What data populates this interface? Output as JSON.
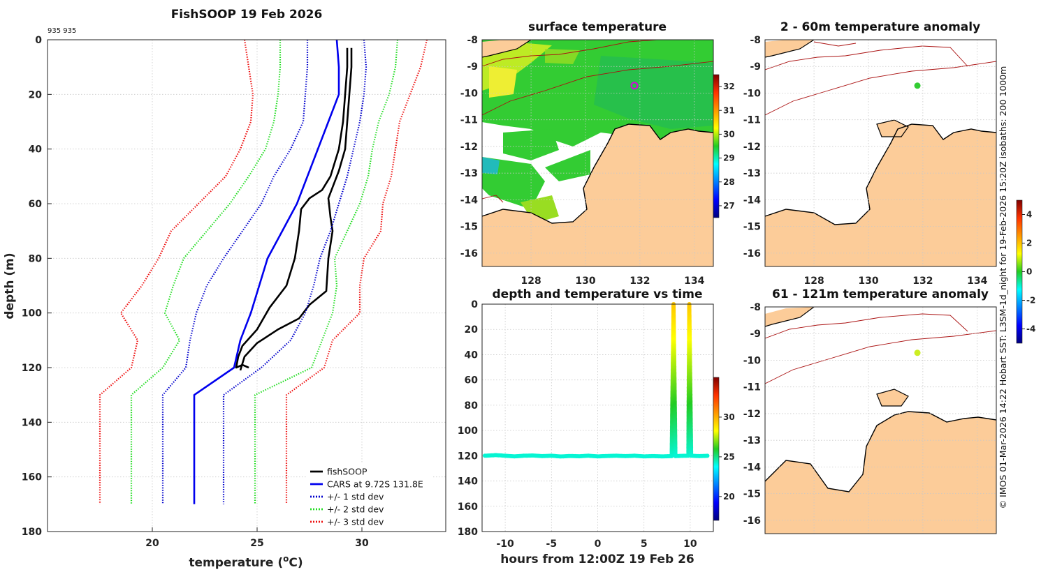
{
  "chart_data": [
    {
      "type": "line",
      "title": "FishSOOP 19 Feb 2026",
      "annotation": "935 935",
      "xlabel_main": "temperature (",
      "xlabel_sup": "o",
      "xlabel_tail": "C)",
      "ylabel": "depth (m)",
      "xlim": [
        15,
        34
      ],
      "ylim": [
        180,
        0
      ],
      "xticks": [
        20,
        25,
        30
      ],
      "yticks": [
        0,
        20,
        40,
        60,
        80,
        100,
        120,
        140,
        160,
        180
      ],
      "legend_position": "bottom-right",
      "series": [
        {
          "name": "fishSOOP",
          "color": "#000000",
          "style": "solid",
          "points": [
            [
              29.3,
              3
            ],
            [
              29.3,
              10
            ],
            [
              29.2,
              20
            ],
            [
              29.1,
              30
            ],
            [
              28.9,
              40
            ],
            [
              28.5,
              50
            ],
            [
              28.1,
              55
            ],
            [
              27.5,
              58
            ],
            [
              27.1,
              62
            ],
            [
              27.0,
              70
            ],
            [
              26.8,
              80
            ],
            [
              26.4,
              90
            ],
            [
              25.6,
              98
            ],
            [
              25.0,
              106
            ],
            [
              24.3,
              112
            ],
            [
              24.1,
              116
            ],
            [
              24.0,
              120
            ],
            [
              24.3,
              119
            ],
            [
              24.6,
              120
            ]
          ]
        },
        {
          "name": "",
          "color": "#000000",
          "style": "solid",
          "points": [
            [
              29.5,
              3
            ],
            [
              29.5,
              10
            ],
            [
              29.4,
              20
            ],
            [
              29.3,
              30
            ],
            [
              29.2,
              40
            ],
            [
              28.9,
              48
            ],
            [
              28.7,
              52
            ],
            [
              28.4,
              58
            ],
            [
              28.5,
              65
            ],
            [
              28.6,
              70
            ],
            [
              28.4,
              80
            ],
            [
              28.3,
              92
            ],
            [
              27.5,
              97
            ],
            [
              27.0,
              102
            ],
            [
              26.0,
              106
            ],
            [
              25.0,
              111
            ],
            [
              24.4,
              116
            ],
            [
              24.2,
              121
            ]
          ]
        },
        {
          "name": "CARS at 9.72S 131.8E",
          "color": "#0000ee",
          "style": "solid",
          "points": [
            [
              28.8,
              0
            ],
            [
              28.9,
              10
            ],
            [
              28.9,
              20
            ],
            [
              28.4,
              30
            ],
            [
              27.9,
              40
            ],
            [
              27.4,
              50
            ],
            [
              26.9,
              60
            ],
            [
              26.2,
              70
            ],
            [
              25.5,
              80
            ],
            [
              25.1,
              90
            ],
            [
              24.7,
              100
            ],
            [
              24.2,
              110
            ],
            [
              23.9,
              120
            ],
            [
              22.0,
              130
            ],
            [
              22.0,
              170
            ]
          ]
        },
        {
          "name": "+/- 1 std dev",
          "color": "#0000cc",
          "style": "dotted",
          "points": [
            [
              27.4,
              0
            ],
            [
              27.4,
              10
            ],
            [
              27.3,
              20
            ],
            [
              27.2,
              30
            ],
            [
              26.6,
              40
            ],
            [
              25.8,
              50
            ],
            [
              25.2,
              60
            ],
            [
              24.3,
              70
            ],
            [
              23.4,
              80
            ],
            [
              22.6,
              90
            ],
            [
              22.1,
              100
            ],
            [
              21.8,
              110
            ],
            [
              21.6,
              120
            ],
            [
              20.5,
              130
            ],
            [
              20.5,
              170
            ]
          ]
        },
        {
          "name": "",
          "color": "#0000cc",
          "style": "dotted",
          "points": [
            [
              30.1,
              0
            ],
            [
              30.2,
              10
            ],
            [
              30.1,
              20
            ],
            [
              29.9,
              30
            ],
            [
              29.6,
              40
            ],
            [
              29.3,
              50
            ],
            [
              28.9,
              60
            ],
            [
              28.5,
              70
            ],
            [
              28.0,
              80
            ],
            [
              27.7,
              90
            ],
            [
              27.3,
              100
            ],
            [
              26.6,
              110
            ],
            [
              25.2,
              120
            ],
            [
              23.4,
              130
            ],
            [
              23.4,
              170
            ]
          ]
        },
        {
          "name": "+/- 2 std dev",
          "color": "#22dd22",
          "style": "dotted",
          "points": [
            [
              26.1,
              0
            ],
            [
              26.1,
              10
            ],
            [
              26.0,
              20
            ],
            [
              25.8,
              30
            ],
            [
              25.4,
              40
            ],
            [
              24.6,
              50
            ],
            [
              23.7,
              60
            ],
            [
              22.6,
              70
            ],
            [
              21.5,
              80
            ],
            [
              21.0,
              90
            ],
            [
              20.6,
              100
            ],
            [
              21.3,
              110
            ],
            [
              20.5,
              120
            ],
            [
              19.0,
              130
            ],
            [
              19.0,
              170
            ]
          ]
        },
        {
          "name": "",
          "color": "#22dd22",
          "style": "dotted",
          "points": [
            [
              31.7,
              0
            ],
            [
              31.6,
              10
            ],
            [
              31.3,
              20
            ],
            [
              30.8,
              30
            ],
            [
              30.5,
              40
            ],
            [
              30.3,
              50
            ],
            [
              29.9,
              60
            ],
            [
              29.3,
              70
            ],
            [
              28.7,
              80
            ],
            [
              28.8,
              90
            ],
            [
              28.6,
              100
            ],
            [
              28.1,
              110
            ],
            [
              27.6,
              120
            ],
            [
              24.9,
              130
            ],
            [
              24.9,
              170
            ]
          ]
        },
        {
          "name": "+/- 3 std dev",
          "color": "#ee1111",
          "style": "dotted",
          "points": [
            [
              24.4,
              0
            ],
            [
              24.6,
              10
            ],
            [
              24.8,
              20
            ],
            [
              24.7,
              30
            ],
            [
              24.2,
              40
            ],
            [
              23.5,
              50
            ],
            [
              22.2,
              60
            ],
            [
              20.9,
              70
            ],
            [
              20.3,
              80
            ],
            [
              19.5,
              90
            ],
            [
              18.5,
              100
            ],
            [
              19.3,
              110
            ],
            [
              19.0,
              120
            ],
            [
              17.5,
              130
            ],
            [
              17.5,
              170
            ]
          ]
        },
        {
          "name": "",
          "color": "#ee1111",
          "style": "dotted",
          "points": [
            [
              33.1,
              0
            ],
            [
              32.8,
              10
            ],
            [
              32.3,
              20
            ],
            [
              31.8,
              30
            ],
            [
              31.6,
              40
            ],
            [
              31.4,
              50
            ],
            [
              31.0,
              60
            ],
            [
              30.9,
              70
            ],
            [
              30.1,
              80
            ],
            [
              29.9,
              90
            ],
            [
              29.9,
              100
            ],
            [
              28.6,
              110
            ],
            [
              28.2,
              120
            ],
            [
              26.4,
              130
            ],
            [
              26.4,
              170
            ]
          ]
        }
      ]
    },
    {
      "type": "heatmap",
      "title": "surface temperature",
      "xticks": [
        128,
        130,
        132,
        134
      ],
      "yticks": [
        -8,
        -9,
        -10,
        -11,
        -12,
        -13,
        -14,
        -15,
        -16
      ],
      "xlim": [
        126.2,
        134.7
      ],
      "ylim": [
        -16.5,
        -8
      ],
      "colorbar": {
        "ticks": [
          27,
          28,
          29,
          30,
          31,
          32
        ],
        "range": [
          26.5,
          32.5
        ]
      },
      "marker": {
        "lon": 131.8,
        "lat": -9.72,
        "color": "#dd00dd"
      }
    },
    {
      "type": "scatter",
      "title": "depth and temperature vs time",
      "xlabel": "hours from 12:00Z 19 Feb 26",
      "xlim": [
        -12.5,
        12.5
      ],
      "ylim": [
        180,
        0
      ],
      "xticks": [
        -10,
        -5,
        0,
        5,
        10
      ],
      "yticks": [
        0,
        20,
        40,
        60,
        80,
        100,
        120,
        140,
        160,
        180
      ],
      "colorbar": {
        "ticks": [
          20,
          25,
          30
        ],
        "range": [
          17,
          35
        ]
      },
      "points": [
        [
          -12.2,
          120
        ],
        [
          -11,
          119.5
        ],
        [
          -10,
          120
        ],
        [
          -9,
          120.5
        ],
        [
          -8,
          120
        ],
        [
          -7,
          119.8
        ],
        [
          -6,
          120.3
        ],
        [
          -5,
          120
        ],
        [
          -4,
          120.6
        ],
        [
          -3,
          120.2
        ],
        [
          -2,
          120.4
        ],
        [
          -1,
          120
        ],
        [
          0,
          120.5
        ],
        [
          1,
          120.2
        ],
        [
          2,
          120
        ],
        [
          3,
          120.3
        ],
        [
          4,
          120
        ],
        [
          5,
          120.5
        ],
        [
          6,
          120.3
        ],
        [
          7,
          120.5
        ],
        [
          8,
          120.3
        ],
        [
          8.2,
          0
        ],
        [
          8.4,
          120.3
        ],
        [
          9.0,
          120.1
        ],
        [
          9.8,
          120
        ],
        [
          9.9,
          0
        ],
        [
          10.1,
          120
        ],
        [
          11,
          120.3
        ],
        [
          12,
          120
        ]
      ]
    },
    {
      "type": "heatmap",
      "title": "2 - 60m temperature anomaly",
      "xticks": [
        128,
        130,
        132,
        134
      ],
      "yticks": [
        -8,
        -9,
        -10,
        -11,
        -12,
        -13,
        -14,
        -15,
        -16
      ],
      "marker": {
        "lon": 131.8,
        "lat": -9.72,
        "color": "#33cc33"
      }
    },
    {
      "type": "heatmap",
      "title": "61 - 121m temperature anomaly",
      "xticks": [
        128,
        130,
        132,
        134
      ],
      "yticks": [
        -8,
        -9,
        -10,
        -11,
        -12,
        -13,
        -14,
        -15,
        -16
      ],
      "marker": {
        "lon": 131.8,
        "lat": -9.72,
        "color": "#ccee22"
      },
      "colorbar": {
        "ticks": [
          -4,
          -2,
          0,
          2,
          4
        ],
        "range": [
          -5,
          5
        ]
      }
    }
  ],
  "credit": "© IMOS 01-Mar-2026 14:22 Hobart SST: L3SM-1d_night for 19-Feb-2026 15:20Z isobaths: 200  1000m"
}
